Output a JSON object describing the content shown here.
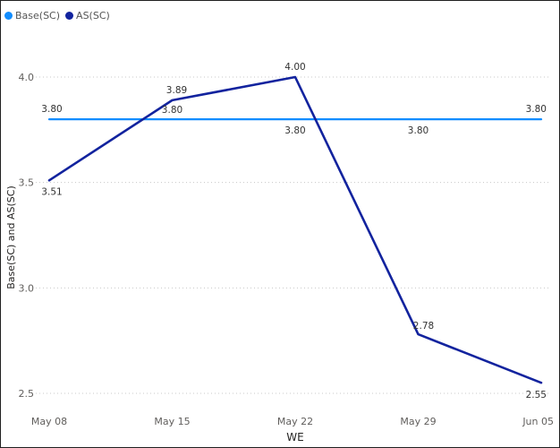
{
  "chart_data": {
    "type": "line",
    "categories": [
      "May 08",
      "May 15",
      "May 22",
      "May 29",
      "Jun 05"
    ],
    "series": [
      {
        "name": "Base(SC)",
        "color": "#118DFF",
        "values": [
          3.8,
          3.8,
          3.8,
          3.8,
          3.8
        ],
        "labels": [
          "3.80",
          "3.80",
          "3.80",
          "3.80",
          "3.80"
        ]
      },
      {
        "name": "AS(SC)",
        "color": "#12239E",
        "values": [
          3.51,
          3.89,
          4.0,
          2.78,
          2.55
        ],
        "labels": [
          "3.51",
          "3.89",
          "4.00",
          "2.78",
          "2.55"
        ]
      }
    ],
    "xlabel": "WE",
    "ylabel": "Base(SC) and AS(SC)",
    "ylim": [
      2.5,
      4.0
    ],
    "yticks": [
      "2.5",
      "3.0",
      "3.5",
      "4.0"
    ],
    "grid": true,
    "legend_position": "top-left"
  }
}
